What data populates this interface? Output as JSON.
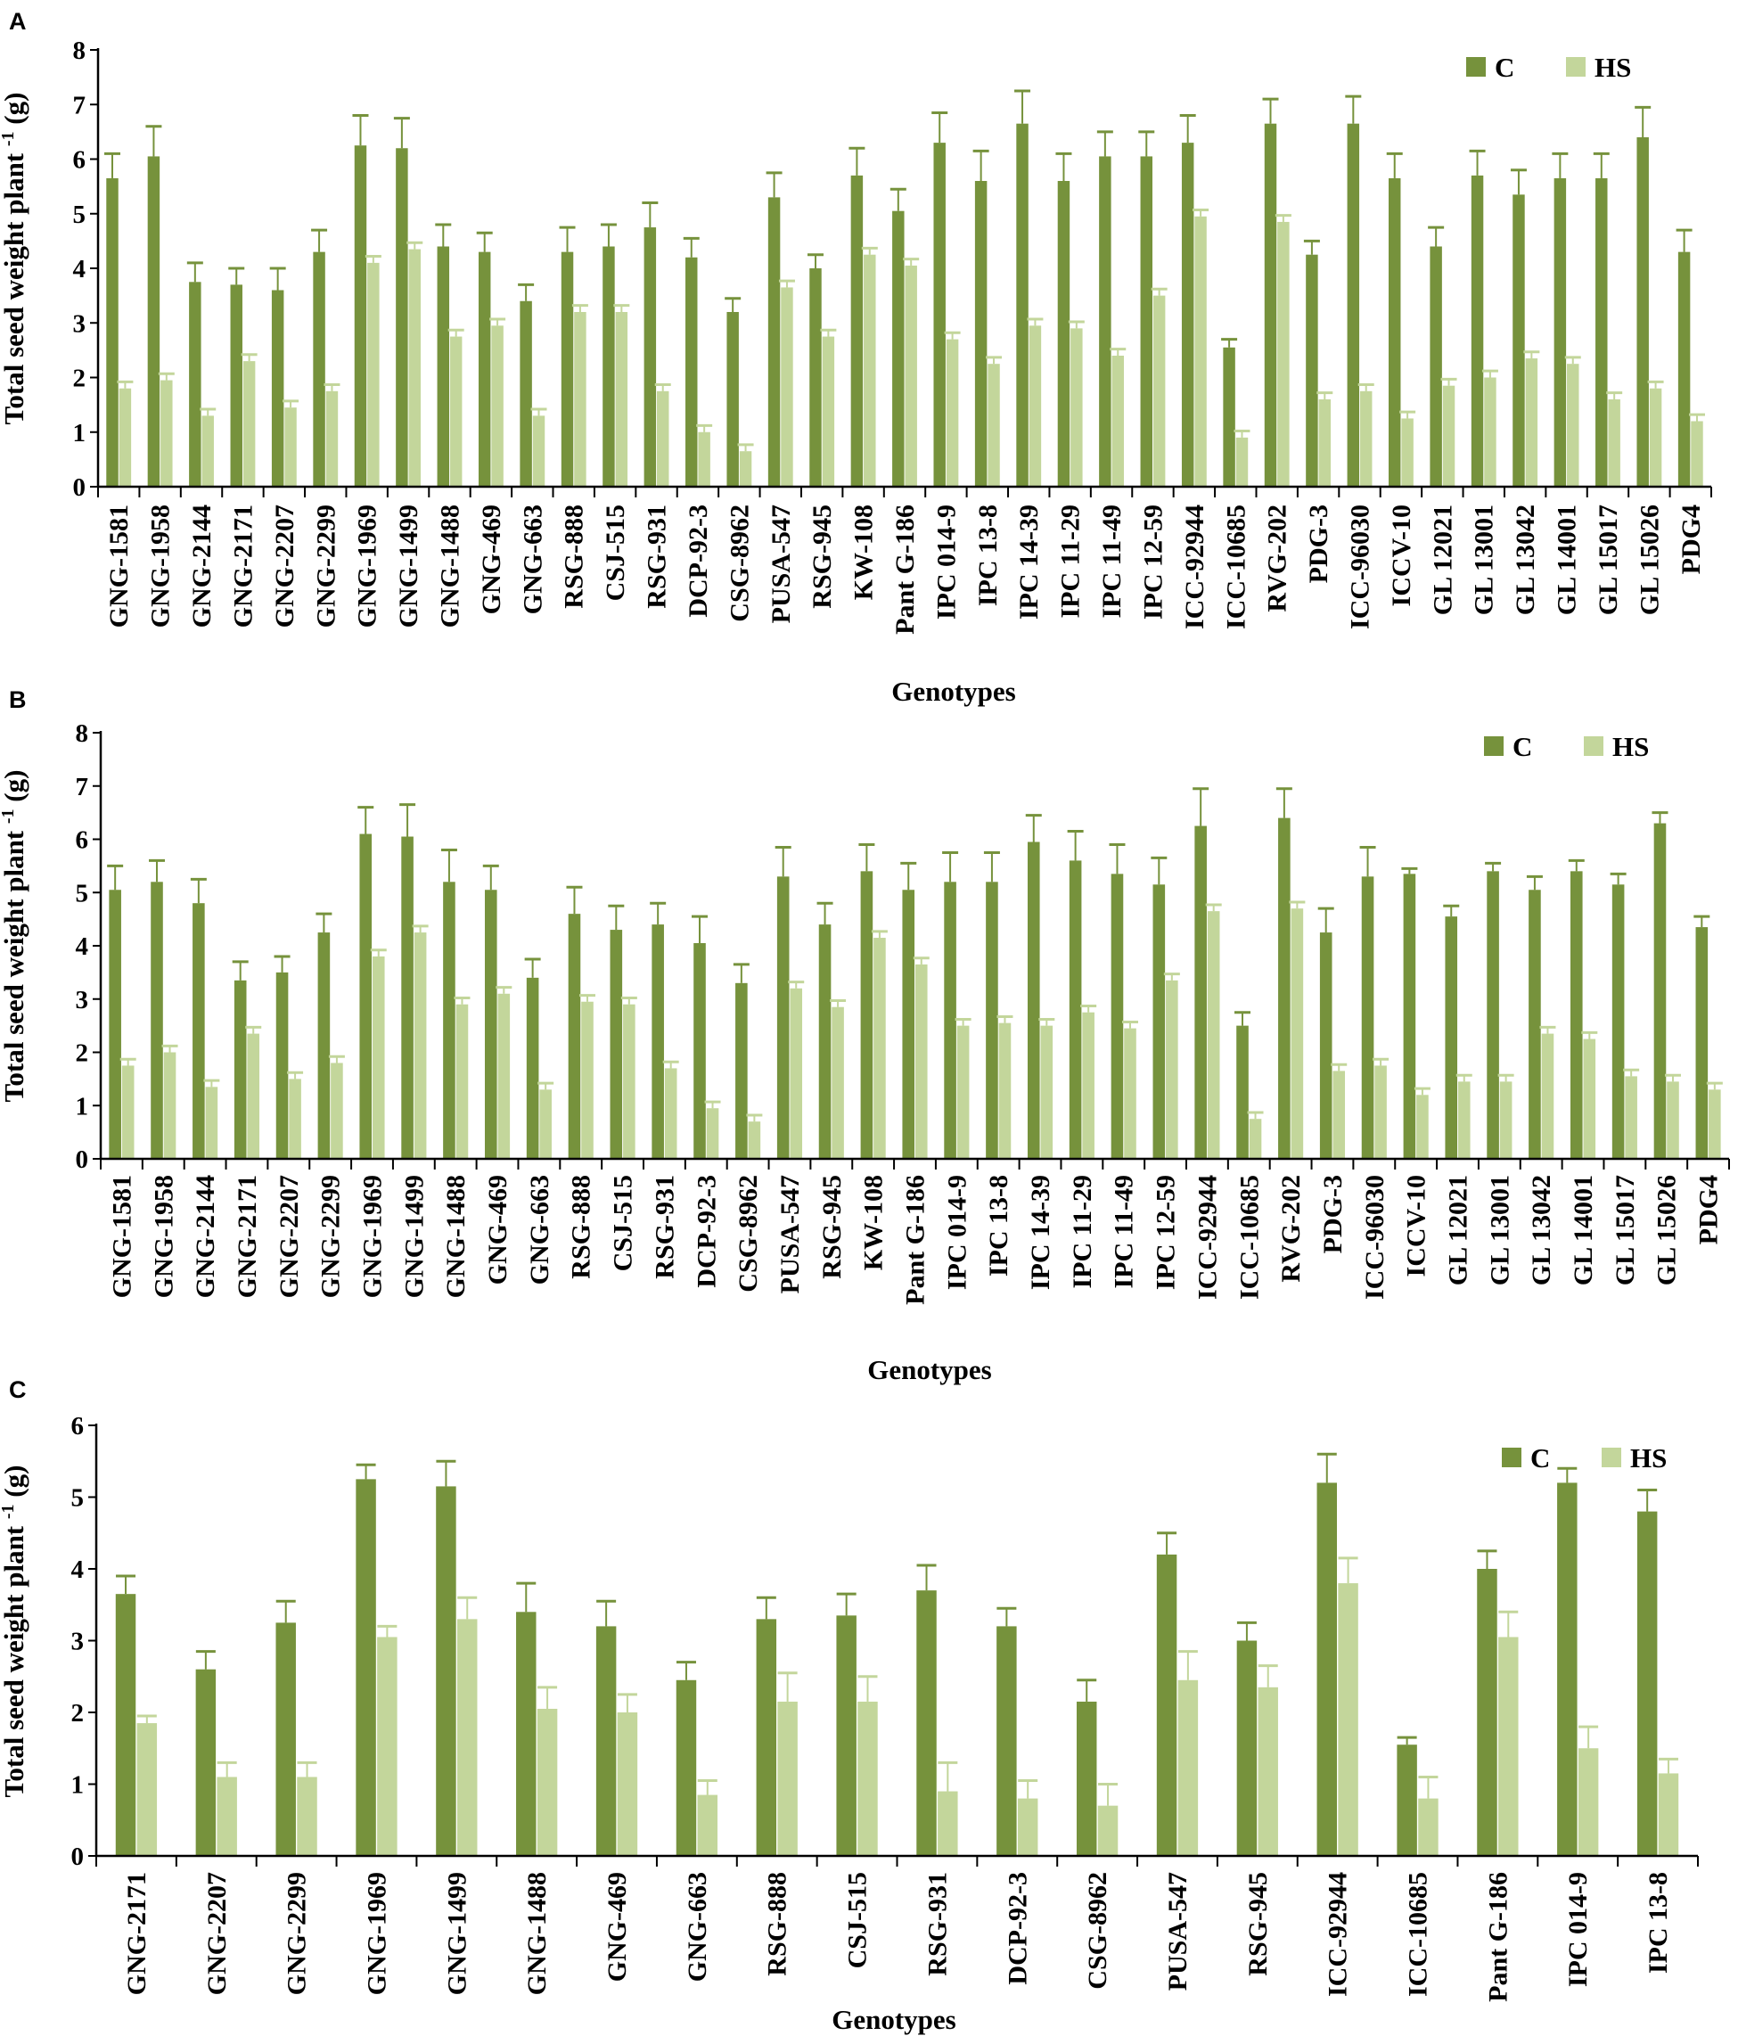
{
  "figure": {
    "colors": {
      "C": "#76923c",
      "HS": "#c3d69b",
      "axis": "#000000"
    }
  },
  "chart_data": [
    {
      "panel": "A",
      "type": "bar",
      "title": "",
      "xlabel": "Genotypes",
      "ylabel": "Total seed weight plant",
      "ylabel_sup": "-1",
      "ylabel_unit": "(g)",
      "ylim": [
        0,
        8
      ],
      "yticks": [
        "0",
        "1",
        "2",
        "3",
        "4",
        "5",
        "6",
        "7",
        "8"
      ],
      "legend": [
        "C",
        "HS"
      ],
      "legend_position": "top-right",
      "categories": [
        "GNG-1581",
        "GNG-1958",
        "GNG-2144",
        "GNG-2171",
        "GNG-2207",
        "GNG-2299",
        "GNG-1969",
        "GNG-1499",
        "GNG-1488",
        "GNG-469",
        "GNG-663",
        "RSG-888",
        "CSJ-515",
        "RSG-931",
        "DCP-92-3",
        "CSG-8962",
        "PUSA-547",
        "RSG-945",
        "KW-108",
        "Pant G-186",
        "IPC 014-9",
        "IPC 13-8",
        "IPC 14-39",
        "IPC 11-29",
        "IPC 11-49",
        "IPC 12-59",
        "ICC-92944",
        "ICC-10685",
        "RVG-202",
        "PDG-3",
        "ICC-96030",
        "ICCV-10",
        "GL 12021",
        "GL 13001",
        "GL 13042",
        "GL 14001",
        "GL 15017",
        "GL 15026",
        "PDG4"
      ],
      "series": [
        {
          "name": "C",
          "values": [
            5.65,
            6.05,
            3.75,
            3.7,
            3.6,
            4.3,
            6.25,
            6.2,
            4.4,
            4.3,
            3.4,
            4.3,
            4.4,
            4.75,
            4.2,
            3.2,
            5.3,
            4.0,
            5.7,
            5.05,
            6.3,
            5.6,
            6.65,
            5.6,
            6.05,
            6.05,
            6.3,
            2.55,
            6.65,
            4.25,
            6.65,
            5.65,
            4.4,
            5.7,
            5.35,
            5.65,
            5.65,
            6.4,
            4.3
          ],
          "errors": [
            0.45,
            0.55,
            0.35,
            0.3,
            0.4,
            0.4,
            0.55,
            0.55,
            0.4,
            0.35,
            0.3,
            0.45,
            0.4,
            0.45,
            0.35,
            0.25,
            0.45,
            0.25,
            0.5,
            0.4,
            0.55,
            0.55,
            0.6,
            0.5,
            0.45,
            0.45,
            0.5,
            0.15,
            0.45,
            0.25,
            0.5,
            0.45,
            0.35,
            0.45,
            0.45,
            0.45,
            0.45,
            0.55,
            0.4
          ]
        },
        {
          "name": "HS",
          "values": [
            1.8,
            1.95,
            1.3,
            2.3,
            1.45,
            1.75,
            4.1,
            4.35,
            2.75,
            2.95,
            1.3,
            3.2,
            3.2,
            1.75,
            1.0,
            0.65,
            3.65,
            2.75,
            4.25,
            4.05,
            2.7,
            2.25,
            2.95,
            2.9,
            2.4,
            3.5,
            4.95,
            0.9,
            4.85,
            1.6,
            1.75,
            1.25,
            1.85,
            2.0,
            2.35,
            2.25,
            1.6,
            1.8,
            1.2
          ]
        }
      ]
    },
    {
      "panel": "B",
      "type": "bar",
      "title": "",
      "xlabel": "Genotypes",
      "ylabel": "Total seed weight plant",
      "ylabel_sup": "-1",
      "ylabel_unit": " (g)",
      "ylim": [
        0,
        8
      ],
      "yticks": [
        "0",
        "1",
        "2",
        "3",
        "4",
        "5",
        "6",
        "7",
        "8"
      ],
      "legend": [
        "C",
        "HS"
      ],
      "legend_position": "top-right",
      "categories": [
        "GNG-1581",
        "GNG-1958",
        "GNG-2144",
        "GNG-2171",
        "GNG-2207",
        "GNG-2299",
        "GNG-1969",
        "GNG-1499",
        "GNG-1488",
        "GNG-469",
        "GNG-663",
        "RSG-888",
        "CSJ-515",
        "RSG-931",
        "DCP-92-3",
        "CSG-8962",
        "PUSA-547",
        "RSG-945",
        "KW-108",
        "Pant G-186",
        "IPC 014-9",
        "IPC 13-8",
        "IPC 14-39",
        "IPC 11-29",
        "IPC 11-49",
        "IPC 12-59",
        "ICC-92944",
        "ICC-10685",
        "RVG-202",
        "PDG-3",
        "ICC-96030",
        "ICCV-10",
        "GL 12021",
        "GL 13001",
        "GL 13042",
        "GL 14001",
        "GL 15017",
        "GL 15026",
        "PDG4"
      ],
      "series": [
        {
          "name": "C",
          "values": [
            5.05,
            5.2,
            4.8,
            3.35,
            3.5,
            4.25,
            6.1,
            6.05,
            5.2,
            5.05,
            3.4,
            4.6,
            4.3,
            4.4,
            4.05,
            3.3,
            5.3,
            4.4,
            5.4,
            5.05,
            5.2,
            5.2,
            5.95,
            5.6,
            5.35,
            5.15,
            6.25,
            2.5,
            6.4,
            4.25,
            5.3,
            5.35,
            4.55,
            5.4,
            5.05,
            5.4,
            5.15,
            6.3,
            4.35
          ],
          "errors": [
            0.45,
            0.4,
            0.45,
            0.35,
            0.3,
            0.35,
            0.5,
            0.6,
            0.6,
            0.45,
            0.35,
            0.5,
            0.45,
            0.4,
            0.5,
            0.35,
            0.55,
            0.4,
            0.5,
            0.5,
            0.55,
            0.55,
            0.5,
            0.55,
            0.55,
            0.5,
            0.7,
            0.25,
            0.55,
            0.45,
            0.55,
            0.1,
            0.2,
            0.15,
            0.25,
            0.2,
            0.2,
            0.2,
            0.2
          ]
        },
        {
          "name": "HS",
          "values": [
            1.75,
            2.0,
            1.35,
            2.35,
            1.5,
            1.8,
            3.8,
            4.25,
            2.9,
            3.1,
            1.3,
            2.95,
            2.9,
            1.7,
            0.95,
            0.7,
            3.2,
            2.85,
            4.15,
            3.65,
            2.5,
            2.55,
            2.5,
            2.75,
            2.45,
            3.35,
            4.65,
            0.75,
            4.7,
            1.65,
            1.75,
            1.2,
            1.45,
            1.45,
            2.35,
            2.25,
            1.55,
            1.45,
            1.3
          ]
        }
      ]
    },
    {
      "panel": "C",
      "type": "bar",
      "title": "",
      "xlabel": "Genotypes",
      "ylabel": "Total seed weight plant",
      "ylabel_sup": "-1",
      "ylabel_unit": " (g)",
      "ylim": [
        0,
        6
      ],
      "yticks": [
        "0",
        "1",
        "2",
        "3",
        "4",
        "5",
        "6"
      ],
      "legend": [
        "C",
        "HS"
      ],
      "legend_position": "top-right",
      "categories": [
        "GNG-2171",
        "GNG-2207",
        "GNG-2299",
        "GNG-1969",
        "GNG-1499",
        "GNG-1488",
        "GNG-469",
        "GNG-663",
        "RSG-888",
        "CSJ-515",
        "RSG-931",
        "DCP-92-3",
        "CSG-8962",
        "PUSA-547",
        "RSG-945",
        "ICC-92944",
        "ICC-10685",
        "Pant G-186",
        "IPC 014-9",
        "IPC 13-8"
      ],
      "series": [
        {
          "name": "C",
          "values": [
            3.65,
            2.6,
            3.25,
            5.25,
            5.15,
            3.4,
            3.2,
            2.45,
            3.3,
            3.35,
            3.7,
            3.2,
            2.15,
            4.2,
            3.0,
            5.2,
            1.55,
            4.0,
            5.2,
            4.8
          ],
          "errors": [
            0.25,
            0.25,
            0.3,
            0.2,
            0.35,
            0.4,
            0.35,
            0.25,
            0.3,
            0.3,
            0.35,
            0.25,
            0.3,
            0.3,
            0.25,
            0.4,
            0.1,
            0.25,
            0.2,
            0.3
          ]
        },
        {
          "name": "HS",
          "values": [
            1.85,
            1.1,
            1.1,
            3.05,
            3.3,
            2.05,
            2.0,
            0.85,
            2.15,
            2.15,
            0.9,
            0.8,
            0.7,
            2.45,
            2.35,
            3.8,
            0.8,
            3.05,
            1.5,
            1.15
          ],
          "errors": [
            0.1,
            0.2,
            0.2,
            0.15,
            0.3,
            0.3,
            0.25,
            0.2,
            0.4,
            0.35,
            0.4,
            0.25,
            0.3,
            0.4,
            0.3,
            0.35,
            0.3,
            0.35,
            0.3,
            0.2
          ]
        }
      ]
    }
  ]
}
